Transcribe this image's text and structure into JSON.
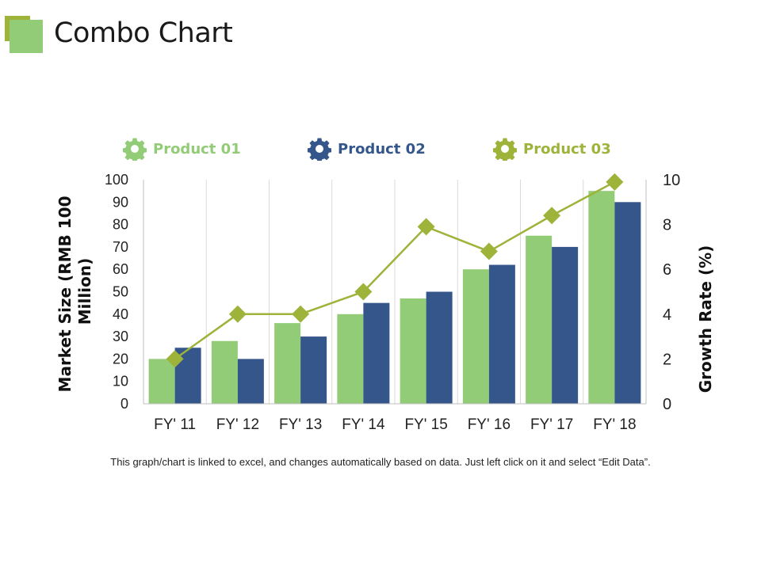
{
  "title": "Combo Chart",
  "colors": {
    "product01": "#92CC77",
    "product02": "#34568B",
    "product03": "#9DB33A",
    "accent_dark": "#9DB33A"
  },
  "legend": [
    {
      "label": "Product 01",
      "icon": "gear-icon",
      "color": "#92CC77"
    },
    {
      "label": "Product 02",
      "icon": "gear-icon",
      "color": "#34568B"
    },
    {
      "label": "Product 03",
      "icon": "gear-icon",
      "color": "#9DB33A"
    }
  ],
  "chart_data": {
    "type": "combo",
    "categories": [
      "FY' 11",
      "FY' 12",
      "FY' 13",
      "FY' 14",
      "FY' 15",
      "FY' 16",
      "FY' 17",
      "FY' 18"
    ],
    "series": [
      {
        "name": "Product 01",
        "kind": "bar",
        "axis": "left",
        "values": [
          20,
          28,
          36,
          40,
          47,
          60,
          75,
          95
        ]
      },
      {
        "name": "Product 02",
        "kind": "bar",
        "axis": "left",
        "values": [
          25,
          20,
          30,
          45,
          50,
          62,
          70,
          90
        ]
      },
      {
        "name": "Product 03",
        "kind": "line",
        "axis": "right",
        "values": [
          2,
          4,
          4,
          5,
          7.9,
          6.8,
          8.4,
          9.9
        ]
      }
    ],
    "y_left": {
      "title_line1": "Market Size (RMB 100",
      "title_line2": "Million)",
      "min": 0,
      "max": 100,
      "ticks": [
        "0",
        "10",
        "20",
        "30",
        "40",
        "50",
        "60",
        "70",
        "80",
        "90",
        "100"
      ]
    },
    "y_right": {
      "title": "Growth Rate (%)",
      "min": 0,
      "max": 10,
      "ticks": [
        "0",
        "2",
        "4",
        "6",
        "8",
        "10"
      ]
    },
    "grid": "vertical"
  },
  "footnote": "This graph/chart is linked to excel, and changes automatically based on data. Just left click on it and select “Edit Data”."
}
